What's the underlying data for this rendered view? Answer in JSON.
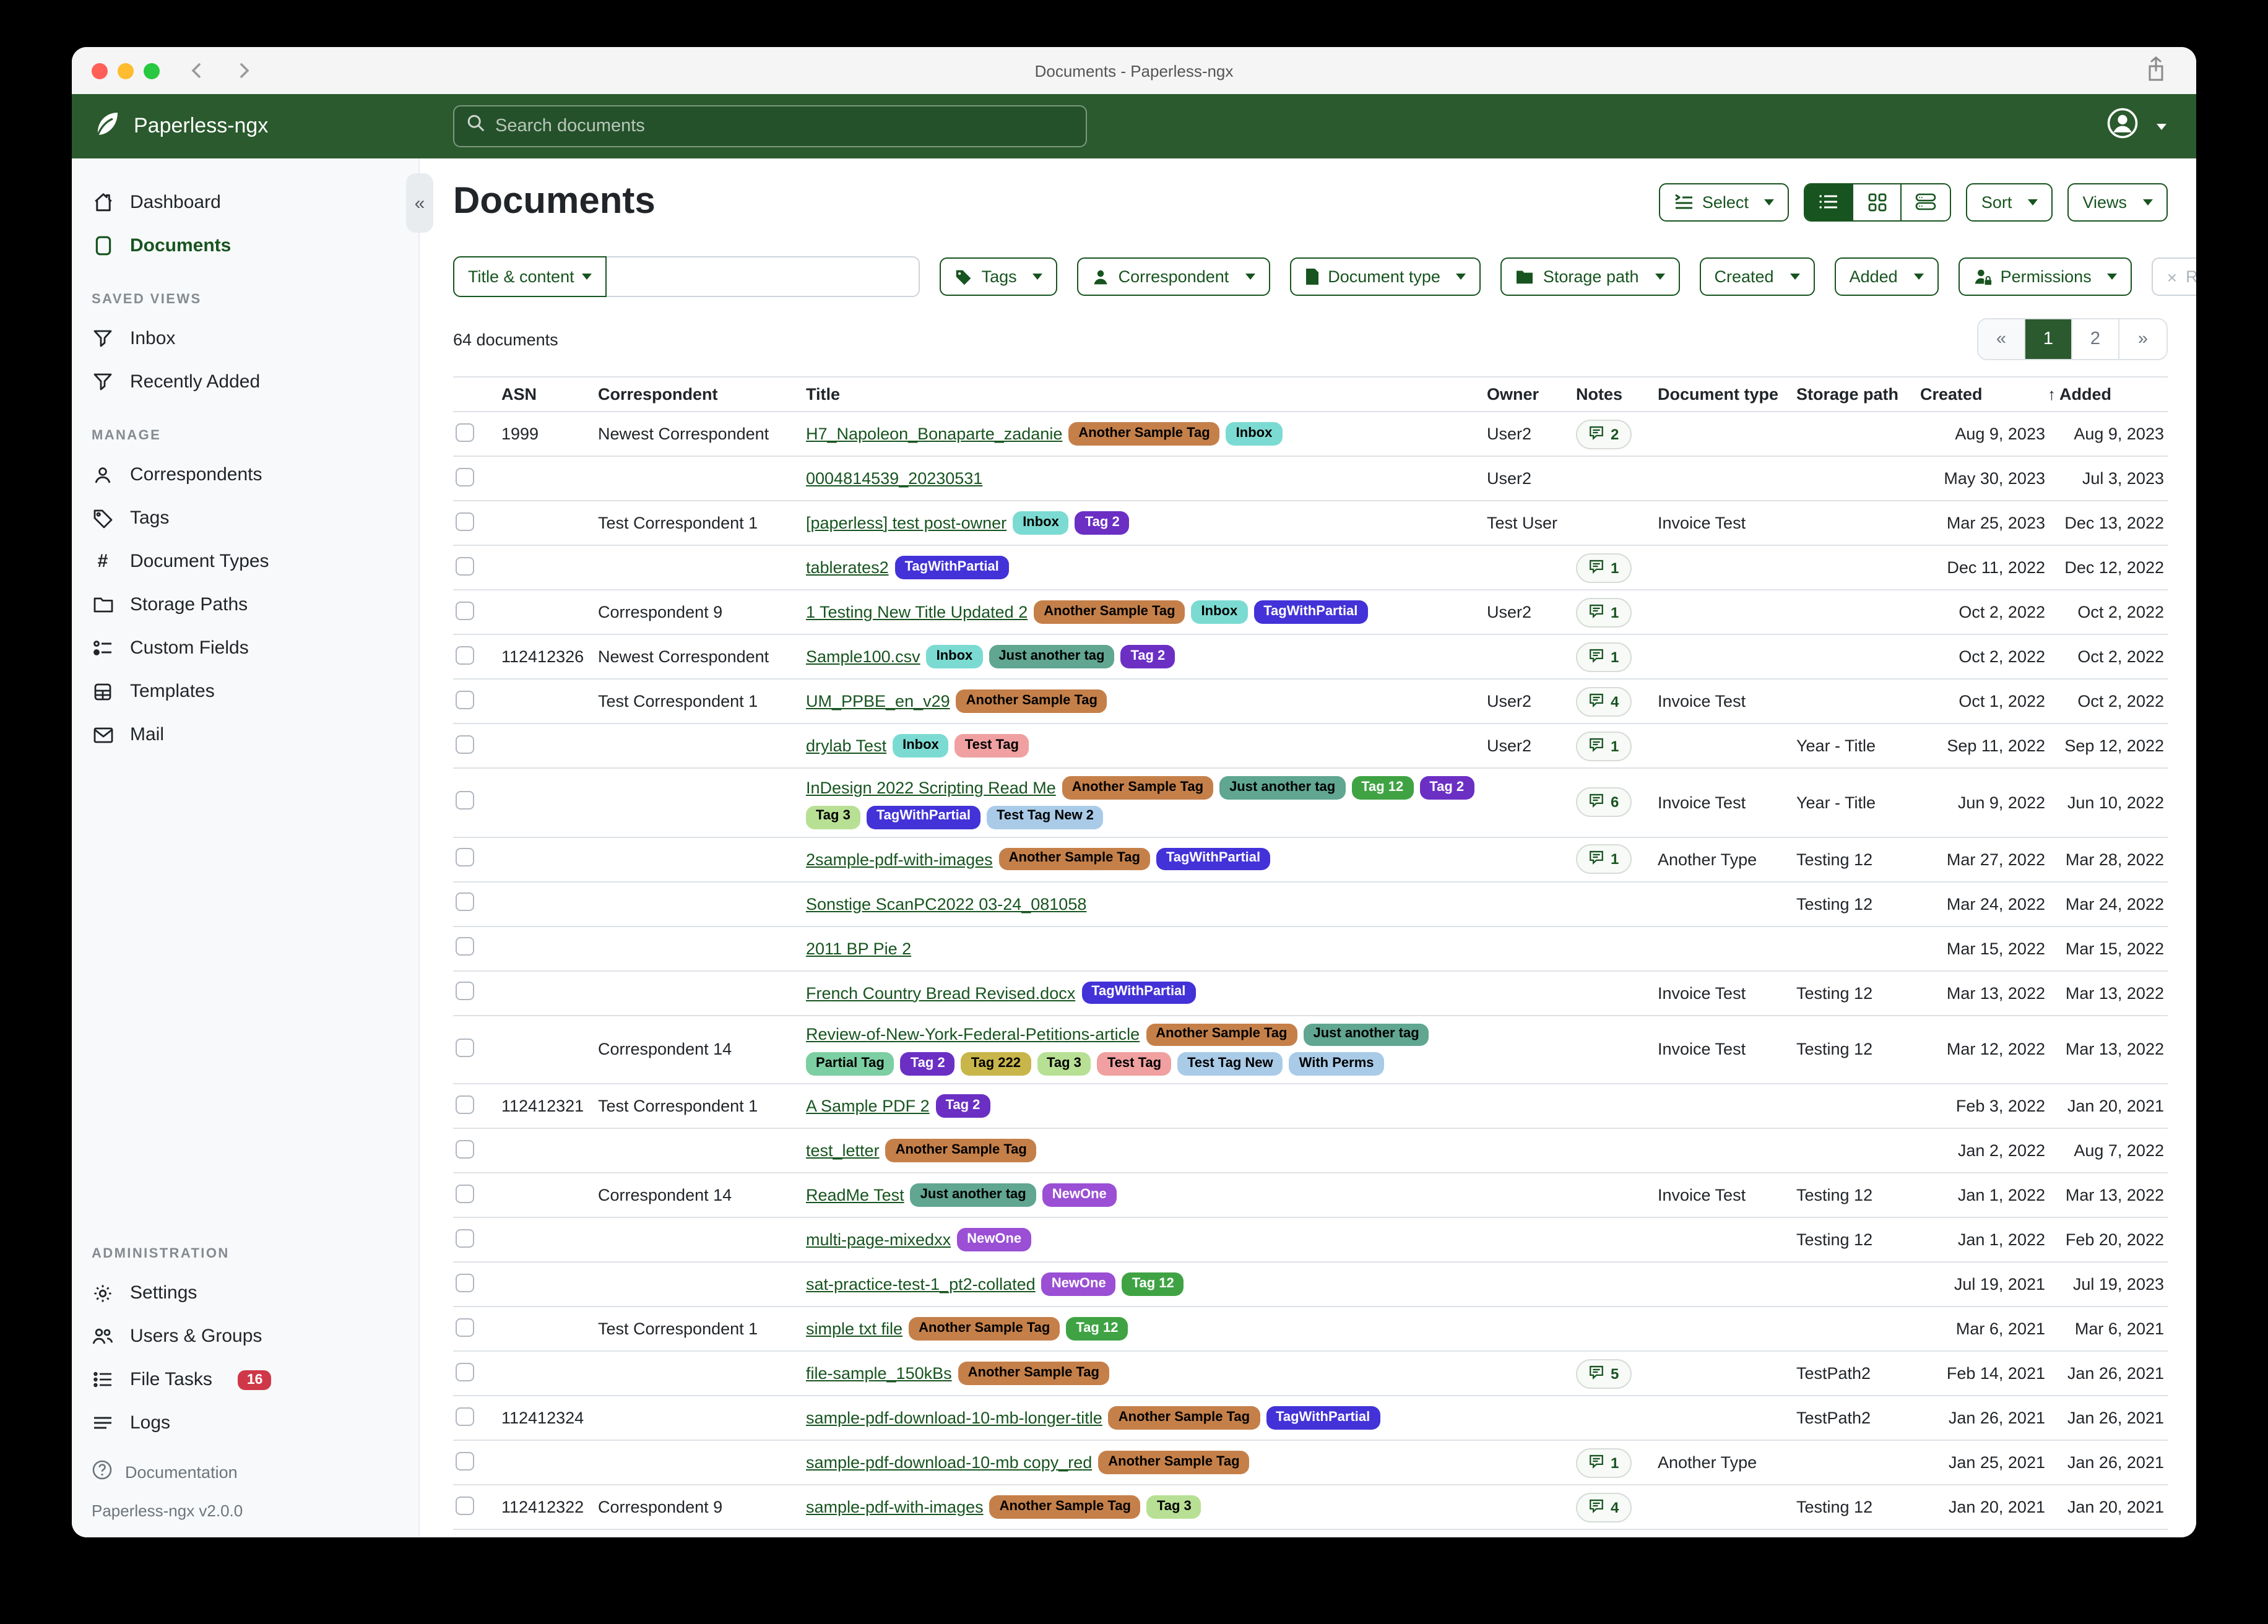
{
  "window": {
    "title": "Documents - Paperless-ngx"
  },
  "navbar": {
    "brand": "Paperless-ngx",
    "search_placeholder": "Search documents"
  },
  "sidebar": {
    "dashboard": "Dashboard",
    "documents": "Documents",
    "saved_views_heading": "SAVED VIEWS",
    "inbox": "Inbox",
    "recently_added": "Recently Added",
    "manage_heading": "MANAGE",
    "correspondents": "Correspondents",
    "tags": "Tags",
    "document_types": "Document Types",
    "storage_paths": "Storage Paths",
    "custom_fields": "Custom Fields",
    "templates": "Templates",
    "mail": "Mail",
    "admin_heading": "ADMINISTRATION",
    "settings": "Settings",
    "users_groups": "Users & Groups",
    "file_tasks": "File Tasks",
    "file_tasks_badge": "16",
    "logs": "Logs",
    "documentation": "Documentation",
    "version": "Paperless-ngx v2.0.0"
  },
  "page": {
    "title": "Documents"
  },
  "toolbar": {
    "select": "Select",
    "sort": "Sort",
    "views": "Views"
  },
  "filters": {
    "field": "Title & content",
    "search_value": "",
    "tags": "Tags",
    "correspondent": "Correspondent",
    "document_type": "Document type",
    "storage_path": "Storage path",
    "created": "Created",
    "added": "Added",
    "permissions": "Permissions",
    "reset": "Reset filters"
  },
  "status": {
    "count_text": "64 documents"
  },
  "pagination": {
    "first": "«",
    "page1": "1",
    "page2": "2",
    "next": "»",
    "active_page": "1"
  },
  "colors": {
    "accent_green": "#17541f",
    "navbar_green": "#2a5a2d",
    "badge_red": "#cf3848"
  },
  "tag_colors": {
    "Another Sample Tag": {
      "bg": "#c5804a",
      "fg": "#000000"
    },
    "Inbox": {
      "bg": "#7bdbd2",
      "fg": "#000000"
    },
    "Tag 2": {
      "bg": "#6b2fc4",
      "fg": "#ffffff"
    },
    "TagWithPartial": {
      "bg": "#4332d8",
      "fg": "#ffffff"
    },
    "Just another tag": {
      "bg": "#60a690",
      "fg": "#000000"
    },
    "Tag 12": {
      "bg": "#3fa344",
      "fg": "#ffffff"
    },
    "Tag 3": {
      "bg": "#b8e094",
      "fg": "#000000"
    },
    "Test Tag": {
      "bg": "#f0a0a0",
      "fg": "#000000"
    },
    "Test Tag New 2": {
      "bg": "#a9cbe8",
      "fg": "#000000"
    },
    "Test Tag New": {
      "bg": "#a9cbe8",
      "fg": "#000000"
    },
    "With Perms": {
      "bg": "#a9cbe8",
      "fg": "#000000"
    },
    "NewOne": {
      "bg": "#9a4fd4",
      "fg": "#ffffff"
    },
    "Partial Tag": {
      "bg": "#7ccfa2",
      "fg": "#000000"
    },
    "Tag 222": {
      "bg": "#c8b64a",
      "fg": "#000000"
    }
  },
  "table": {
    "headers": {
      "asn": "ASN",
      "correspondent": "Correspondent",
      "title": "Title",
      "owner": "Owner",
      "notes": "Notes",
      "doctype": "Document type",
      "storage": "Storage path",
      "created": "Created",
      "added": "Added",
      "sort_arrow": "↑"
    },
    "rows": [
      {
        "asn": "1999",
        "correspondent": "Newest Correspondent",
        "title": "H7_Napoleon_Bonaparte_zadanie",
        "tags": [
          "Another Sample Tag",
          "Inbox"
        ],
        "owner": "User2",
        "notes": "2",
        "doctype": "",
        "storage": "",
        "created": "Aug 9, 2023",
        "added": "Aug 9, 2023"
      },
      {
        "asn": "",
        "correspondent": "",
        "title": "0004814539_20230531",
        "tags": [],
        "owner": "User2",
        "notes": "",
        "doctype": "",
        "storage": "",
        "created": "May 30, 2023",
        "added": "Jul 3, 2023"
      },
      {
        "asn": "",
        "correspondent": "Test Correspondent 1",
        "title": "[paperless] test post-owner",
        "tags": [
          "Inbox",
          "Tag 2"
        ],
        "owner": "Test User",
        "notes": "",
        "doctype": "Invoice Test",
        "storage": "",
        "created": "Mar 25, 2023",
        "added": "Dec 13, 2022"
      },
      {
        "asn": "",
        "correspondent": "",
        "title": "tablerates2",
        "tags": [
          "TagWithPartial"
        ],
        "owner": "",
        "notes": "1",
        "doctype": "",
        "storage": "",
        "created": "Dec 11, 2022",
        "added": "Dec 12, 2022"
      },
      {
        "asn": "",
        "correspondent": "Correspondent 9",
        "title": "1 Testing New Title Updated 2",
        "tags": [
          "Another Sample Tag",
          "Inbox",
          "TagWithPartial"
        ],
        "owner": "User2",
        "notes": "1",
        "doctype": "",
        "storage": "",
        "created": "Oct 2, 2022",
        "added": "Oct 2, 2022"
      },
      {
        "asn": "112412326",
        "correspondent": "Newest Correspondent",
        "title": "Sample100.csv",
        "tags": [
          "Inbox",
          "Just another tag",
          "Tag 2"
        ],
        "owner": "",
        "notes": "1",
        "doctype": "",
        "storage": "",
        "created": "Oct 2, 2022",
        "added": "Oct 2, 2022"
      },
      {
        "asn": "",
        "correspondent": "Test Correspondent 1",
        "title": "UM_PPBE_en_v29",
        "tags": [
          "Another Sample Tag"
        ],
        "owner": "User2",
        "notes": "4",
        "doctype": "Invoice Test",
        "storage": "",
        "created": "Oct 1, 2022",
        "added": "Oct 2, 2022"
      },
      {
        "asn": "",
        "correspondent": "",
        "title": "drylab Test",
        "tags": [
          "Inbox",
          "Test Tag"
        ],
        "owner": "User2",
        "notes": "1",
        "doctype": "",
        "storage": "Year - Title",
        "created": "Sep 11, 2022",
        "added": "Sep 12, 2022"
      },
      {
        "asn": "",
        "correspondent": "",
        "title": "InDesign 2022 Scripting Read Me",
        "tags": [
          "Another Sample Tag",
          "Just another tag",
          "Tag 12",
          "Tag 2",
          "Tag 3",
          "TagWithPartial",
          "Test Tag New 2"
        ],
        "owner": "",
        "notes": "6",
        "doctype": "Invoice Test",
        "storage": "Year - Title",
        "created": "Jun 9, 2022",
        "added": "Jun 10, 2022"
      },
      {
        "asn": "",
        "correspondent": "",
        "title": "2sample-pdf-with-images",
        "tags": [
          "Another Sample Tag",
          "TagWithPartial"
        ],
        "owner": "",
        "notes": "1",
        "doctype": "Another Type",
        "storage": "Testing 12",
        "created": "Mar 27, 2022",
        "added": "Mar 28, 2022"
      },
      {
        "asn": "",
        "correspondent": "",
        "title": "Sonstige ScanPC2022 03-24_081058",
        "tags": [],
        "owner": "",
        "notes": "",
        "doctype": "",
        "storage": "Testing 12",
        "created": "Mar 24, 2022",
        "added": "Mar 24, 2022"
      },
      {
        "asn": "",
        "correspondent": "",
        "title": "2011 BP Pie 2",
        "tags": [],
        "owner": "",
        "notes": "",
        "doctype": "",
        "storage": "",
        "created": "Mar 15, 2022",
        "added": "Mar 15, 2022"
      },
      {
        "asn": "",
        "correspondent": "",
        "title": "French Country Bread Revised.docx",
        "tags": [
          "TagWithPartial"
        ],
        "owner": "",
        "notes": "",
        "doctype": "Invoice Test",
        "storage": "Testing 12",
        "created": "Mar 13, 2022",
        "added": "Mar 13, 2022"
      },
      {
        "asn": "",
        "correspondent": "Correspondent 14",
        "title": "Review-of-New-York-Federal-Petitions-article",
        "tags": [
          "Another Sample Tag",
          "Just another tag",
          "Partial Tag",
          "Tag 2",
          "Tag 222",
          "Tag 3",
          "Test Tag",
          "Test Tag New",
          "With Perms"
        ],
        "owner": "",
        "notes": "",
        "doctype": "Invoice Test",
        "storage": "Testing 12",
        "created": "Mar 12, 2022",
        "added": "Mar 13, 2022"
      },
      {
        "asn": "112412321",
        "correspondent": "Test Correspondent 1",
        "title": "A Sample PDF 2",
        "tags": [
          "Tag 2"
        ],
        "owner": "",
        "notes": "",
        "doctype": "",
        "storage": "",
        "created": "Feb 3, 2022",
        "added": "Jan 20, 2021"
      },
      {
        "asn": "",
        "correspondent": "",
        "title": "test_letter",
        "tags": [
          "Another Sample Tag"
        ],
        "owner": "",
        "notes": "",
        "doctype": "",
        "storage": "",
        "created": "Jan 2, 2022",
        "added": "Aug 7, 2022"
      },
      {
        "asn": "",
        "correspondent": "Correspondent 14",
        "title": "ReadMe Test",
        "tags": [
          "Just another tag",
          "NewOne"
        ],
        "owner": "",
        "notes": "",
        "doctype": "Invoice Test",
        "storage": "Testing 12",
        "created": "Jan 1, 2022",
        "added": "Mar 13, 2022"
      },
      {
        "asn": "",
        "correspondent": "",
        "title": "multi-page-mixedxx",
        "tags": [
          "NewOne"
        ],
        "owner": "",
        "notes": "",
        "doctype": "",
        "storage": "Testing 12",
        "created": "Jan 1, 2022",
        "added": "Feb 20, 2022"
      },
      {
        "asn": "",
        "correspondent": "",
        "title": "sat-practice-test-1_pt2-collated",
        "tags": [
          "NewOne",
          "Tag 12"
        ],
        "owner": "",
        "notes": "",
        "doctype": "",
        "storage": "",
        "created": "Jul 19, 2021",
        "added": "Jul 19, 2023"
      },
      {
        "asn": "",
        "correspondent": "Test Correspondent 1",
        "title": "simple txt file",
        "tags": [
          "Another Sample Tag",
          "Tag 12"
        ],
        "owner": "",
        "notes": "",
        "doctype": "",
        "storage": "",
        "created": "Mar 6, 2021",
        "added": "Mar 6, 2021"
      },
      {
        "asn": "",
        "correspondent": "",
        "title": "file-sample_150kBs",
        "tags": [
          "Another Sample Tag"
        ],
        "owner": "",
        "notes": "5",
        "doctype": "",
        "storage": "TestPath2",
        "created": "Feb 14, 2021",
        "added": "Jan 26, 2021"
      },
      {
        "asn": "112412324",
        "correspondent": "",
        "title": "sample-pdf-download-10-mb-longer-title",
        "tags": [
          "Another Sample Tag",
          "TagWithPartial"
        ],
        "owner": "",
        "notes": "",
        "doctype": "",
        "storage": "TestPath2",
        "created": "Jan 26, 2021",
        "added": "Jan 26, 2021"
      },
      {
        "asn": "",
        "correspondent": "",
        "title": "sample-pdf-download-10-mb copy_red",
        "tags": [
          "Another Sample Tag"
        ],
        "owner": "",
        "notes": "1",
        "doctype": "Another Type",
        "storage": "",
        "created": "Jan 25, 2021",
        "added": "Jan 26, 2021"
      },
      {
        "asn": "112412322",
        "correspondent": "Correspondent 9",
        "title": "sample-pdf-with-images",
        "tags": [
          "Another Sample Tag",
          "Tag 3"
        ],
        "owner": "",
        "notes": "4",
        "doctype": "",
        "storage": "Testing 12",
        "created": "Jan 20, 2021",
        "added": "Jan 20, 2021"
      }
    ]
  }
}
